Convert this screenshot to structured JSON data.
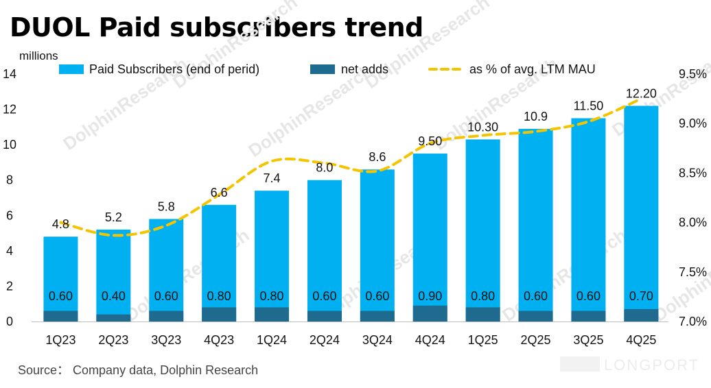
{
  "title": "DUOL Paid subscribers trend",
  "source": "Source： Company data, Dolphin Research",
  "watermark": "DolphinResearch",
  "brand_watermark": "LONGPORT",
  "colors": {
    "paid": "#00b0f0",
    "net": "#1f6a8f",
    "line": "#f5c400"
  },
  "chart_data": {
    "type": "bar",
    "categories": [
      "1Q23",
      "2Q23",
      "3Q23",
      "4Q23",
      "1Q24",
      "2Q24",
      "3Q24",
      "4Q24",
      "1Q25",
      "2Q25",
      "3Q25",
      "4Q25"
    ],
    "ylabel": "millions",
    "ylim": [
      0,
      14
    ],
    "yticks": [
      "0",
      "2",
      "4",
      "6",
      "8",
      "10",
      "12",
      "14"
    ],
    "y2lim": [
      7.0,
      9.5
    ],
    "y2ticks": [
      "7.0%",
      "7.5%",
      "8.0%",
      "8.5%",
      "9.0%",
      "9.5%"
    ],
    "series": [
      {
        "name": "Paid Subscribers (end of perid)",
        "type": "bar",
        "values": [
          4.8,
          5.2,
          5.8,
          6.6,
          7.4,
          8.0,
          8.6,
          9.5,
          10.3,
          10.9,
          11.5,
          12.2
        ],
        "labels": [
          "4.8",
          "5.2",
          "5.8",
          "6.6",
          "7.4",
          "8.0",
          "8.6",
          "9.50",
          "10.30",
          "10.9",
          "11.50",
          "12.20"
        ]
      },
      {
        "name": "net adds",
        "type": "bar",
        "values": [
          0.6,
          0.4,
          0.6,
          0.8,
          0.8,
          0.6,
          0.6,
          0.9,
          0.8,
          0.6,
          0.6,
          0.7
        ],
        "labels": [
          "0.60",
          "0.40",
          "0.60",
          "0.80",
          "0.80",
          "0.60",
          "0.60",
          "0.90",
          "0.80",
          "0.60",
          "0.60",
          "0.70"
        ]
      },
      {
        "name": "as % of avg. LTM MAU",
        "type": "line",
        "axis": "right",
        "values": [
          8.0,
          7.87,
          7.97,
          8.28,
          8.62,
          8.6,
          8.52,
          8.8,
          8.88,
          8.92,
          9.02,
          9.25
        ]
      }
    ],
    "legend": "top",
    "grid": false
  }
}
